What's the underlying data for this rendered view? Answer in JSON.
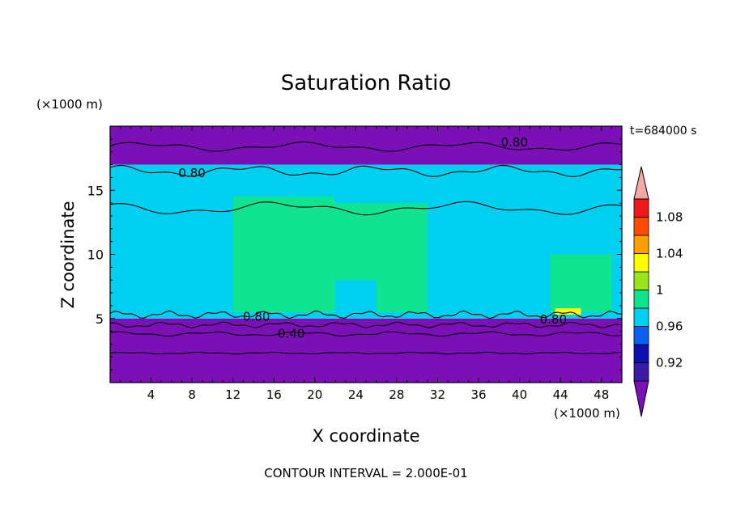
{
  "chart_data": {
    "type": "heatmap",
    "title": "Saturation Ratio",
    "xlabel": "X coordinate",
    "ylabel": "Z coordinate",
    "x_units": "(×1000 m)",
    "y_units": "(×1000 m)",
    "time_label": "t=684000 s",
    "contour_interval_text": "CONTOUR INTERVAL = 2.000E-01",
    "xlim": [
      0,
      50
    ],
    "ylim": [
      0,
      20
    ],
    "x_ticks": [
      4,
      8,
      12,
      16,
      20,
      24,
      28,
      32,
      36,
      40,
      44,
      48
    ],
    "y_ticks": [
      5,
      10,
      15
    ],
    "colorbar": {
      "levels": [
        0.92,
        0.94,
        0.96,
        0.98,
        1.0,
        1.02,
        1.04,
        1.06,
        1.08,
        1.1
      ],
      "tick_labels": [
        "0.92",
        "0.96",
        "1",
        "1.04",
        "1.08"
      ],
      "tick_values": [
        0.92,
        0.96,
        1.0,
        1.04,
        1.08
      ],
      "colors": [
        "#7a10b6",
        "#3a1ba8",
        "#1010b0",
        "#0a5ff0",
        "#00d0f0",
        "#10e490",
        "#98e61a",
        "#ffff00",
        "#ffa000",
        "#ff4a00",
        "#f01818",
        "#f8a8a8"
      ]
    },
    "regions": [
      {
        "value": 0.9,
        "x": [
          0,
          50
        ],
        "z": [
          0,
          5
        ]
      },
      {
        "value": 0.9,
        "x": [
          0,
          50
        ],
        "z": [
          17,
          20
        ]
      },
      {
        "value": 0.98,
        "x": [
          0,
          50
        ],
        "z": [
          5,
          17
        ]
      },
      {
        "value": 1.0,
        "x": [
          12,
          22
        ],
        "z": [
          5.5,
          14.5
        ]
      },
      {
        "value": 1.0,
        "x": [
          22,
          26
        ],
        "z": [
          8,
          14
        ]
      },
      {
        "value": 1.0,
        "x": [
          26,
          31
        ],
        "z": [
          5.5,
          14
        ]
      },
      {
        "value": 1.0,
        "x": [
          43,
          49
        ],
        "z": [
          5.5,
          10
        ]
      },
      {
        "value": 1.04,
        "x": [
          43.5,
          46
        ],
        "z": [
          5.3,
          5.8
        ]
      }
    ],
    "contour_labels": [
      {
        "text": "0.80",
        "x": 39.5,
        "z": 18.7
      },
      {
        "text": "0.80",
        "x": 8,
        "z": 16.3
      },
      {
        "text": "0.80",
        "x": 14.3,
        "z": 5.1
      },
      {
        "text": "0.40",
        "x": 17.7,
        "z": 3.8
      },
      {
        "text": "0.80",
        "x": 43.3,
        "z": 4.9
      }
    ]
  }
}
